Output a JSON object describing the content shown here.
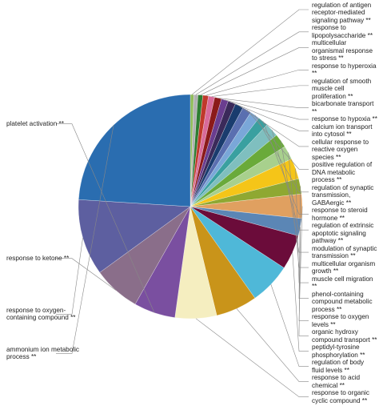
{
  "chart_data": {
    "type": "pie",
    "categories": [
      "regulation of antigen receptor-mediated signaling pathway **",
      "response to lipopolysaccharide **",
      "multicellular organismal response to stress **",
      "response to hyperoxia **",
      "regulation of smooth muscle cell proliferation **",
      "bicarbonate transport **",
      "response to hypoxia **",
      "calcium ion transport into cytosol **",
      "cellular response to reactive oxygen species **",
      "positive regulation of DNA metabolic process **",
      "regulation of synaptic transmission, GABAergic **",
      "response to steroid hormone **",
      "regulation of extrinsic apoptotic signaling pathway **",
      "modulation of synaptic transmission **",
      "multicellular organism growth **",
      "muscle cell migration **",
      "phenol-containing compound metabolic process **",
      "response to oxygen levels **",
      "organic hydroxy compound transport **",
      "peptidyl-tyrosine phosphorylation **",
      "regulation of body fluid levels **",
      "response to acid chemical **",
      "response to organic cyclic compound **",
      "platelet activation **",
      "response to ketone **",
      "response to oxygen-containing compound **",
      "ammonium ion metabolic process **"
    ],
    "values": [
      0.5,
      0.6,
      0.7,
      0.8,
      0.9,
      1,
      1,
      1.1,
      1.2,
      1.3,
      1.4,
      1.5,
      2,
      2,
      2,
      3,
      2.2,
      3.5,
      2.5,
      5,
      6,
      6,
      6,
      6,
      6.8,
      11,
      24
    ],
    "colors": [
      "#8fbc5a",
      "#b0b0b0",
      "#2e7d32",
      "#c0392b",
      "#d86a9a",
      "#8b1a1a",
      "#6a3d8f",
      "#3b2a5a",
      "#1a3c6e",
      "#5a6fb0",
      "#7aa7d8",
      "#3aa0a0",
      "#7fbfbf",
      "#6aaa3a",
      "#a8d08d",
      "#f5c518",
      "#8fa832",
      "#e0a060",
      "#5b86b5",
      "#6b0c3a",
      "#4fb8d8",
      "#c9941a",
      "#f5eec0",
      "#7a4fa0",
      "#8a6e8a",
      "#5d5fa0",
      "#2a6db0"
    ]
  }
}
